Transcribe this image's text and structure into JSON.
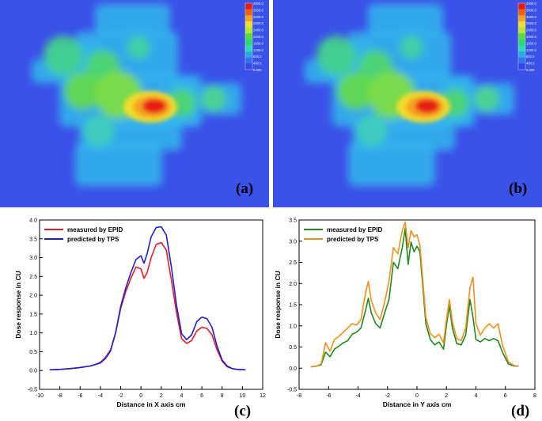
{
  "panels": {
    "a": {
      "label": "(a)"
    },
    "b": {
      "label": "(b)"
    },
    "c": {
      "label": "(c)"
    },
    "d": {
      "label": "(d)"
    }
  },
  "colorbar": {
    "colors": [
      "#e81c16",
      "#f06010",
      "#f5a020",
      "#f2dc2c",
      "#b8e632",
      "#5cd840",
      "#2ed870",
      "#30d8b8",
      "#2ca8e6",
      "#3470f0",
      "#3a44ec"
    ],
    "ticks": [
      "4000.0",
      "3600.0",
      "3200.0",
      "2800.0",
      "2400.0",
      "2000.0",
      "1600.0",
      "1200.0",
      "800.0",
      "400.0",
      "0.000"
    ]
  },
  "chart_data": [
    {
      "type": "line",
      "xlabel": "Distance in X axis cm",
      "ylabel": "Dose response in CU",
      "xlim": [
        -10,
        12
      ],
      "ylim": [
        -0.5,
        4.0
      ],
      "xticks": [
        -10,
        -8,
        -6,
        -4,
        -2,
        0,
        2,
        4,
        6,
        8,
        10,
        12
      ],
      "yticks": [
        -0.5,
        0.0,
        0.5,
        1.0,
        1.5,
        2.0,
        2.5,
        3.0,
        3.5,
        4.0
      ],
      "legend_position": "top-left",
      "series": [
        {
          "name": "measured by EPID",
          "color": "#e31e24",
          "x": [
            -9.0,
            -8,
            -7,
            -6,
            -5,
            -4.5,
            -4,
            -3.5,
            -3,
            -2.5,
            -2,
            -1.5,
            -1,
            -0.5,
            0,
            0.3,
            0.6,
            1,
            1.5,
            2,
            2.5,
            3,
            3.5,
            4,
            4.5,
            5,
            5.5,
            6,
            6.5,
            7,
            7.5,
            8,
            8.5,
            9,
            9.5,
            10.3
          ],
          "values": [
            0.02,
            0.03,
            0.05,
            0.08,
            0.12,
            0.16,
            0.22,
            0.35,
            0.55,
            1.0,
            1.65,
            2.1,
            2.45,
            2.75,
            2.7,
            2.45,
            2.6,
            3.0,
            3.35,
            3.4,
            3.2,
            2.4,
            1.55,
            0.85,
            0.72,
            0.8,
            1.05,
            1.15,
            1.12,
            0.95,
            0.55,
            0.25,
            0.1,
            0.05,
            0.03,
            0.02
          ]
        },
        {
          "name": "predicted by TPS",
          "color": "#1f1fd6",
          "x": [
            -9.0,
            -8,
            -7,
            -6,
            -5,
            -4.5,
            -4,
            -3.5,
            -3,
            -2.5,
            -2,
            -1.5,
            -1,
            -0.5,
            0,
            0.3,
            0.6,
            1,
            1.5,
            2,
            2.5,
            3,
            3.5,
            4,
            4.5,
            5,
            5.5,
            6,
            6.5,
            7,
            7.5,
            8,
            8.5,
            9,
            9.5,
            10.3
          ],
          "values": [
            0.02,
            0.03,
            0.05,
            0.08,
            0.12,
            0.16,
            0.2,
            0.32,
            0.52,
            1.0,
            1.7,
            2.2,
            2.6,
            2.95,
            3.05,
            2.85,
            3.1,
            3.55,
            3.8,
            3.82,
            3.6,
            2.75,
            1.75,
            0.98,
            0.82,
            0.95,
            1.3,
            1.42,
            1.38,
            1.15,
            0.65,
            0.28,
            0.12,
            0.05,
            0.03,
            0.02
          ]
        }
      ]
    },
    {
      "type": "line",
      "xlabel": "Distance in Y axis cm",
      "ylabel": "Dose response in CU",
      "xlim": [
        -8,
        8
      ],
      "ylim": [
        -0.5,
        3.5
      ],
      "xticks": [
        -8,
        -6,
        -4,
        -2,
        0,
        2,
        4,
        6,
        8
      ],
      "yticks": [
        -0.5,
        0.0,
        0.5,
        1.0,
        1.5,
        2.0,
        2.5,
        3.0,
        3.5
      ],
      "legend_position": "top-left",
      "series": [
        {
          "name": "measured by EPID",
          "color": "#1f8a1f",
          "x": [
            -7.2,
            -6.8,
            -6.5,
            -6.2,
            -5.9,
            -5.6,
            -5.3,
            -5.0,
            -4.7,
            -4.4,
            -4.1,
            -3.8,
            -3.5,
            -3.3,
            -3.1,
            -2.8,
            -2.5,
            -2.2,
            -1.9,
            -1.6,
            -1.3,
            -1.0,
            -0.8,
            -0.6,
            -0.4,
            -0.2,
            0,
            0.2,
            0.4,
            0.6,
            0.9,
            1.2,
            1.5,
            1.8,
            2.0,
            2.2,
            2.4,
            2.7,
            3.0,
            3.3,
            3.6,
            3.8,
            4.0,
            4.3,
            4.6,
            4.9,
            5.2,
            5.5,
            5.8,
            6.2,
            6.6,
            6.9
          ],
          "values": [
            0.03,
            0.05,
            0.08,
            0.38,
            0.27,
            0.45,
            0.52,
            0.6,
            0.65,
            0.8,
            0.85,
            0.95,
            1.35,
            1.65,
            1.3,
            1.05,
            0.95,
            1.3,
            1.62,
            2.5,
            2.35,
            2.85,
            3.3,
            2.45,
            2.98,
            2.75,
            2.88,
            2.75,
            1.9,
            1.05,
            0.68,
            0.55,
            0.62,
            0.45,
            1.02,
            1.48,
            0.95,
            0.58,
            0.55,
            0.78,
            1.62,
            1.2,
            0.68,
            0.62,
            0.7,
            0.65,
            0.7,
            0.65,
            0.38,
            0.1,
            0.05,
            0.05
          ]
        },
        {
          "name": "predicted by TPS",
          "color": "#f0901a",
          "x": [
            -7.2,
            -6.8,
            -6.5,
            -6.2,
            -5.9,
            -5.6,
            -5.3,
            -5.0,
            -4.7,
            -4.4,
            -4.1,
            -3.8,
            -3.5,
            -3.3,
            -3.1,
            -2.8,
            -2.5,
            -2.2,
            -1.9,
            -1.6,
            -1.3,
            -1.0,
            -0.8,
            -0.6,
            -0.4,
            -0.2,
            0,
            0.2,
            0.4,
            0.6,
            0.9,
            1.2,
            1.5,
            1.8,
            2.0,
            2.2,
            2.4,
            2.7,
            3.0,
            3.3,
            3.6,
            3.8,
            4.0,
            4.3,
            4.6,
            4.9,
            5.2,
            5.5,
            5.8,
            6.2,
            6.6,
            6.9
          ],
          "values": [
            0.03,
            0.05,
            0.1,
            0.6,
            0.4,
            0.68,
            0.75,
            0.85,
            0.95,
            1.05,
            1.02,
            1.15,
            1.75,
            2.05,
            1.6,
            1.3,
            1.15,
            1.55,
            2.05,
            2.85,
            2.7,
            3.25,
            3.45,
            2.85,
            3.25,
            3.1,
            3.15,
            2.9,
            2.05,
            1.2,
            0.82,
            0.72,
            0.8,
            0.6,
            1.15,
            1.62,
            1.1,
            0.7,
            0.65,
            0.95,
            1.9,
            2.15,
            1.05,
            0.78,
            0.95,
            1.05,
            0.95,
            1.05,
            0.55,
            0.15,
            0.06,
            0.05
          ]
        }
      ]
    }
  ]
}
